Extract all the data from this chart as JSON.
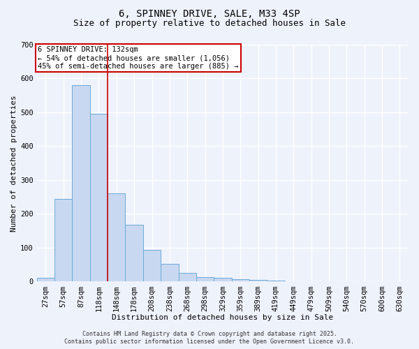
{
  "title1": "6, SPINNEY DRIVE, SALE, M33 4SP",
  "title2": "Size of property relative to detached houses in Sale",
  "xlabel": "Distribution of detached houses by size in Sale",
  "ylabel": "Number of detached properties",
  "bar_color": "#c8d8f0",
  "bar_edge_color": "#6baad8",
  "categories": [
    "27sqm",
    "57sqm",
    "87sqm",
    "118sqm",
    "148sqm",
    "178sqm",
    "208sqm",
    "238sqm",
    "268sqm",
    "298sqm",
    "329sqm",
    "359sqm",
    "389sqm",
    "419sqm",
    "449sqm",
    "479sqm",
    "509sqm",
    "540sqm",
    "570sqm",
    "600sqm",
    "630sqm"
  ],
  "values": [
    12,
    245,
    580,
    495,
    260,
    168,
    93,
    53,
    25,
    13,
    12,
    8,
    5,
    3,
    0,
    0,
    0,
    0,
    0,
    0,
    0
  ],
  "ylim": [
    0,
    700
  ],
  "yticks": [
    0,
    100,
    200,
    300,
    400,
    500,
    600,
    700
  ],
  "vline_index": 3.5,
  "vline_color": "#cc0000",
  "annotation_text": "6 SPINNEY DRIVE: 132sqm\n← 54% of detached houses are smaller (1,056)\n45% of semi-detached houses are larger (885) →",
  "annotation_box_color": "#ffffff",
  "annotation_box_edge": "#cc0000",
  "footer1": "Contains HM Land Registry data © Crown copyright and database right 2025.",
  "footer2": "Contains public sector information licensed under the Open Government Licence v3.0.",
  "background_color": "#eef2fb",
  "grid_color": "#ffffff",
  "title_fontsize": 10,
  "subtitle_fontsize": 9,
  "axis_label_fontsize": 8,
  "tick_fontsize": 7.5,
  "annotation_fontsize": 7.5,
  "footer_fontsize": 6
}
